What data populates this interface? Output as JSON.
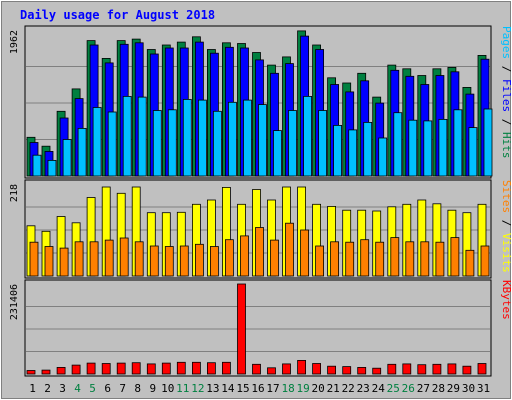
{
  "chart_data": {
    "type": "bar",
    "title": "Daily usage for August 2018",
    "categories": [
      "1",
      "2",
      "3",
      "4",
      "5",
      "6",
      "7",
      "8",
      "9",
      "10",
      "11",
      "12",
      "13",
      "14",
      "15",
      "16",
      "17",
      "18",
      "19",
      "20",
      "21",
      "22",
      "23",
      "24",
      "25",
      "26",
      "27",
      "28",
      "29",
      "30",
      "31"
    ],
    "weekend_days": [
      4,
      5,
      11,
      12,
      18,
      19,
      25,
      26
    ],
    "panels": [
      {
        "id": "top",
        "max_label": "1962",
        "ylim": [
          0,
          1962
        ],
        "legend": [
          {
            "text": "Pages",
            "color": "#00c0ff"
          },
          {
            "text": " / ",
            "color": "#000000"
          },
          {
            "text": "Files",
            "color": "#0000ff"
          },
          {
            "text": " / ",
            "color": "#000000"
          },
          {
            "text": "Hits",
            "color": "#008040"
          }
        ],
        "series": [
          {
            "name": "Hits",
            "color": "#008040",
            "values": [
              520,
              400,
              870,
              1170,
              1820,
              1580,
              1820,
              1840,
              1700,
              1760,
              1800,
              1870,
              1700,
              1790,
              1780,
              1660,
              1490,
              1600,
              1950,
              1760,
              1320,
              1250,
              1380,
              1060,
              1490,
              1440,
              1350,
              1440,
              1460,
              1190,
              1620
            ]
          },
          {
            "name": "Files",
            "color": "#0000ff",
            "values": [
              450,
              330,
              780,
              1040,
              1760,
              1520,
              1770,
              1790,
              1640,
              1720,
              1720,
              1800,
              1650,
              1730,
              1720,
              1560,
              1380,
              1510,
              1880,
              1700,
              1230,
              1130,
              1280,
              980,
              1420,
              1340,
              1230,
              1350,
              1400,
              1100,
              1570
            ]
          },
          {
            "name": "Pages",
            "color": "#00c0ff",
            "values": [
              280,
              210,
              490,
              640,
              920,
              860,
              1070,
              1060,
              880,
              890,
              1030,
              1020,
              870,
              990,
              1020,
              960,
              610,
              880,
              1070,
              880,
              680,
              620,
              720,
              510,
              850,
              750,
              740,
              760,
              890,
              650,
              900
            ]
          }
        ]
      },
      {
        "id": "middle",
        "max_label": "218",
        "ylim": [
          0,
          218
        ],
        "legend": [
          {
            "text": "Sites",
            "color": "#ff8000"
          },
          {
            "text": " / ",
            "color": "#000000"
          },
          {
            "text": "Visits",
            "color": "#ffff00"
          }
        ],
        "series": [
          {
            "name": "Visits",
            "color": "#ffff00",
            "values": [
              119,
              106,
              141,
              126,
              186,
              211,
              196,
              211,
              150,
              150,
              151,
              170,
              180,
              210,
              170,
              205,
              180,
              211,
              211,
              170,
              165,
              156,
              156,
              154,
              164,
              170,
              180,
              171,
              156,
              150,
              170
            ]
          },
          {
            "name": "Sites",
            "color": "#ff8000",
            "values": [
              80,
              70,
              66,
              81,
              81,
              85,
              90,
              81,
              71,
              70,
              71,
              75,
              70,
              86,
              95,
              115,
              85,
              125,
              109,
              71,
              81,
              80,
              86,
              80,
              91,
              81,
              81,
              80,
              91,
              61,
              71
            ]
          }
        ]
      },
      {
        "id": "bottom",
        "max_label": "231406",
        "ylim": [
          0,
          231406
        ],
        "legend": [
          {
            "text": "KBytes",
            "color": "#ff0000"
          }
        ],
        "series": [
          {
            "name": "KBytes",
            "color": "#ff0000",
            "values": [
              9000,
              10000,
              17000,
              23000,
              28000,
              27000,
              28000,
              29000,
              26000,
              28000,
              30000,
              30000,
              29000,
              30000,
              231406,
              25000,
              16000,
              26000,
              35000,
              27000,
              20000,
              19000,
              17000,
              15000,
              25000,
              26000,
              24000,
              25000,
              26000,
              20000,
              27000
            ]
          }
        ]
      }
    ]
  }
}
